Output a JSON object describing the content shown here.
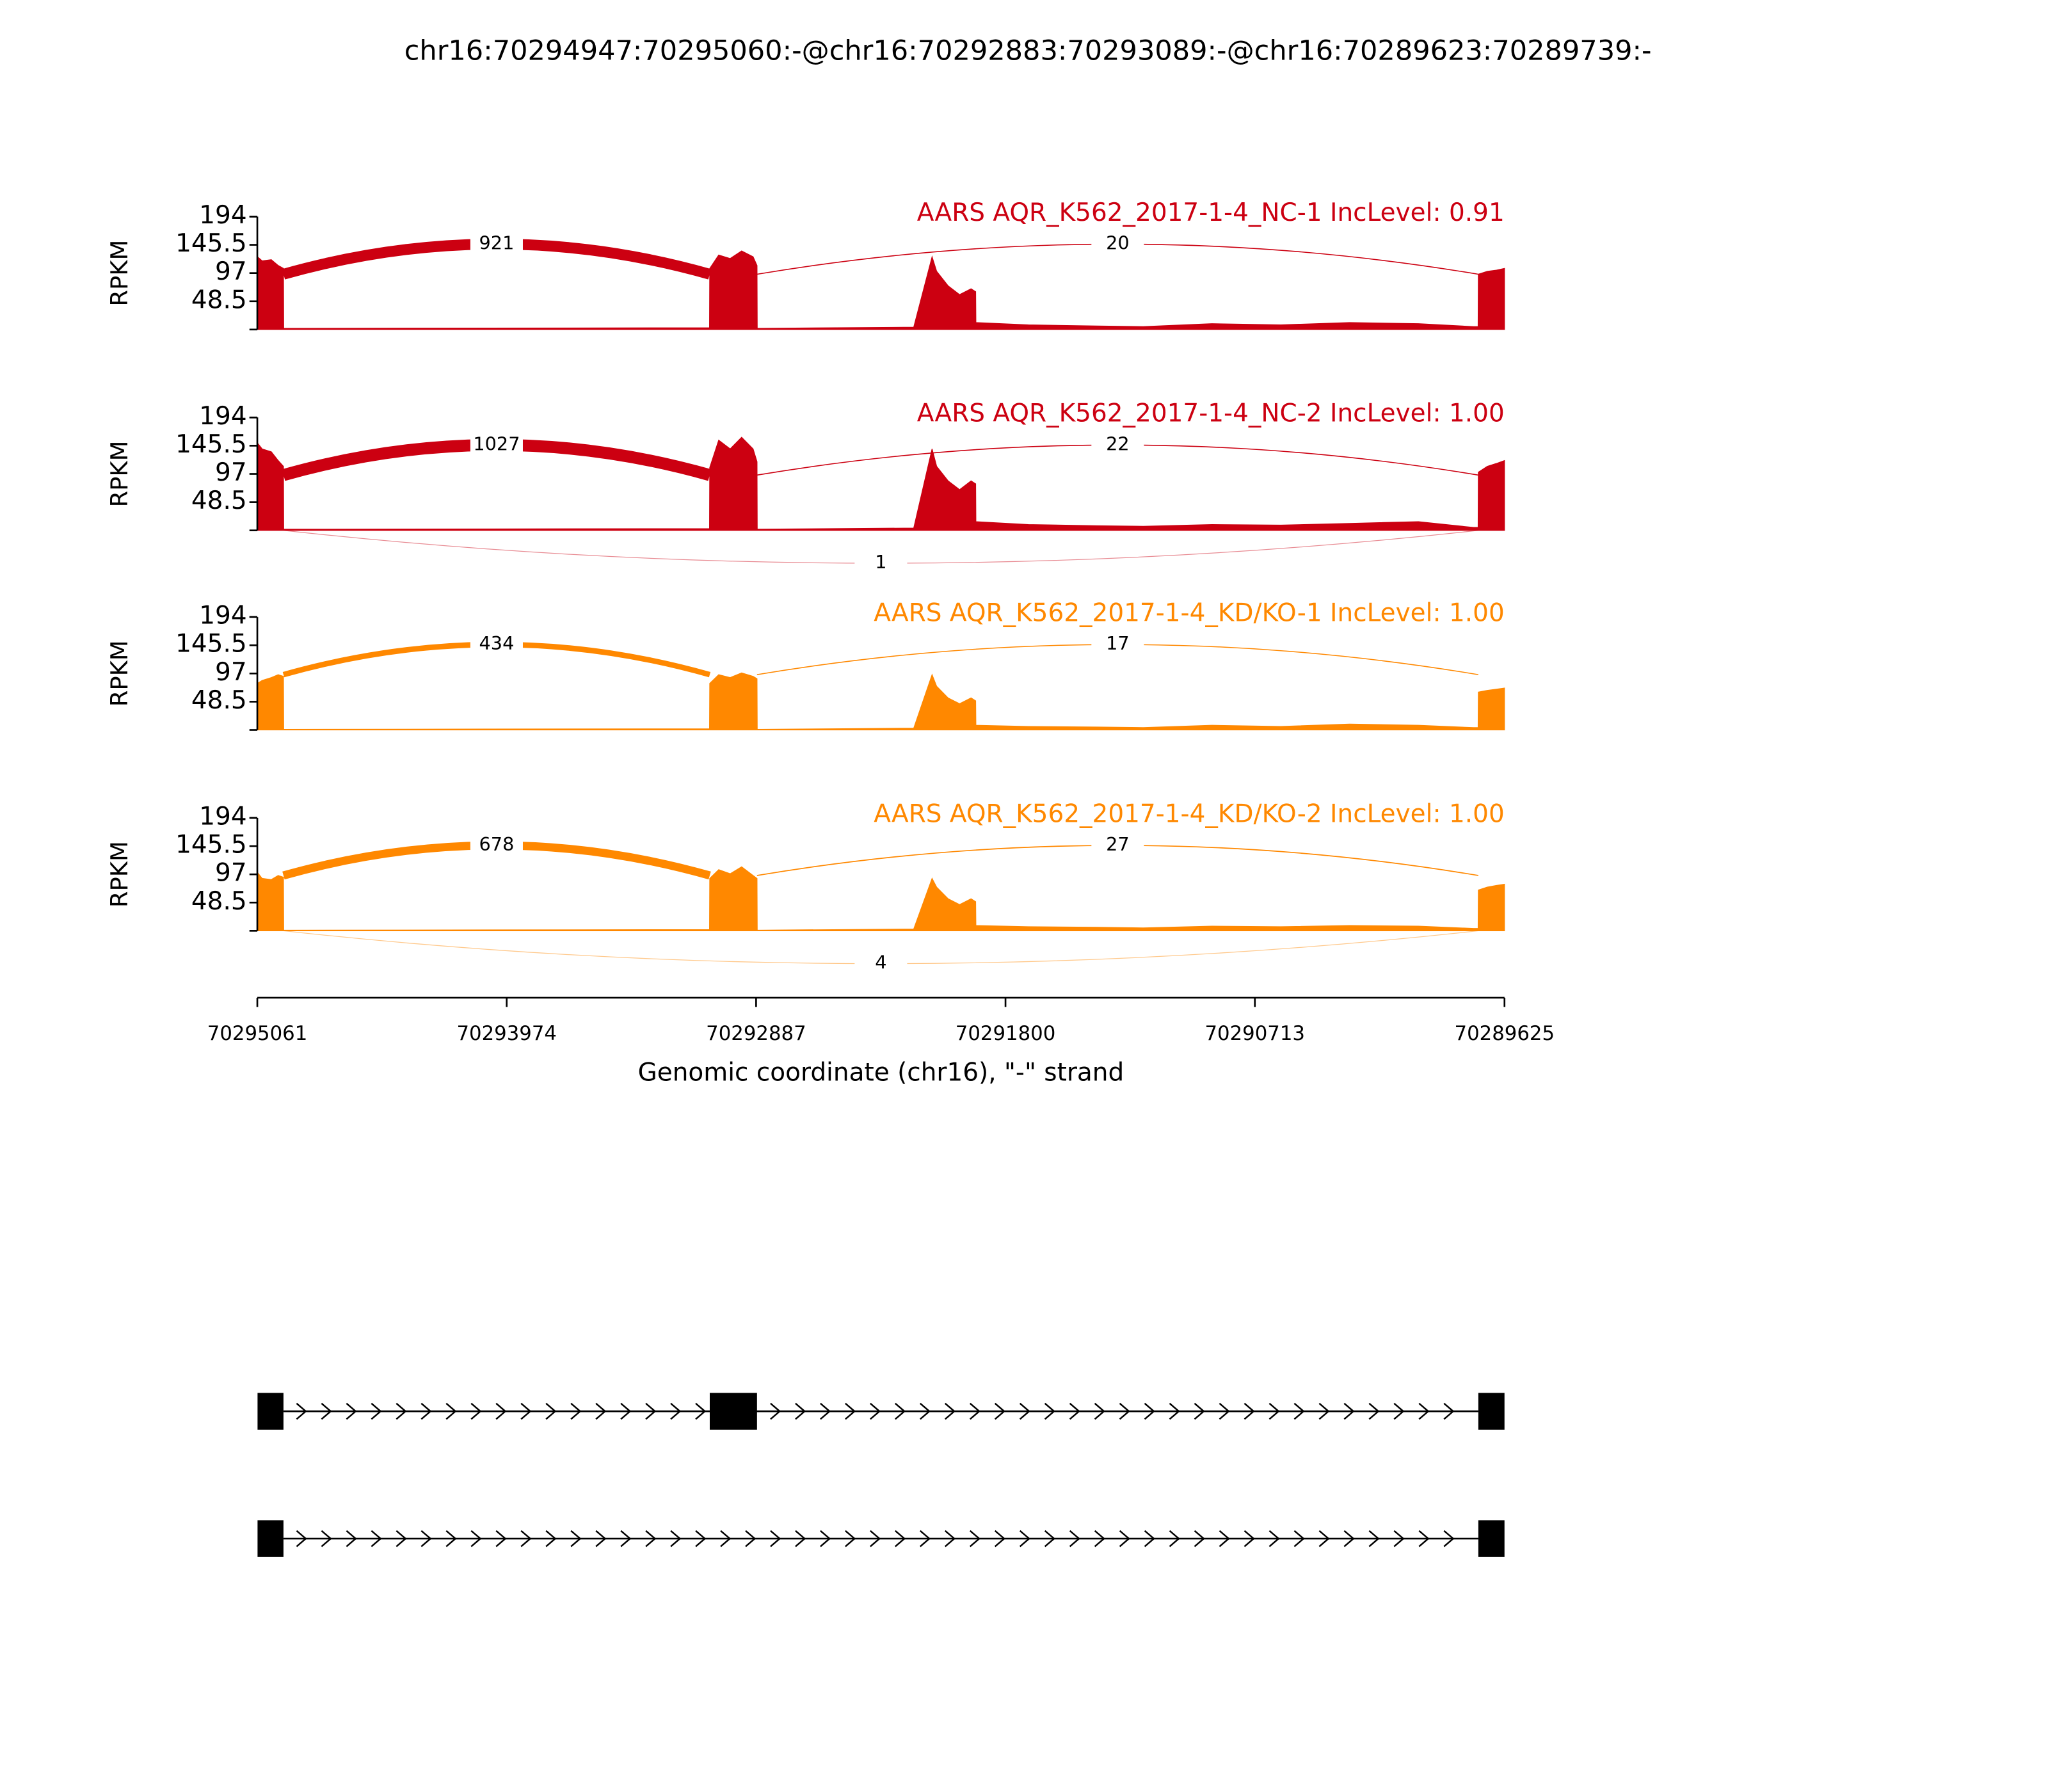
{
  "title": "chr16:70294947:70295060:-@chr16:70292883:70293089:-@chr16:70289623:70289739:-",
  "genome_axis": {
    "xlabel": "Genomic coordinate (chr16), \"-\" strand",
    "xlim": [
      70295061,
      70289625
    ],
    "xticks": [
      70295061,
      70293974,
      70292887,
      70291800,
      70290713,
      70289625
    ]
  },
  "chart_data": [
    {
      "type": "sashimi",
      "label": "AARS AQR_K562_2017-1-4_NC-1 IncLevel: 0.91",
      "color": "#cc0011",
      "ylabel": "RPKM",
      "ylim": [
        0,
        194
      ],
      "yticks": [
        48.5,
        97,
        145.5,
        194
      ],
      "coverage": {
        "x": [
          70295060,
          70295040,
          70295000,
          70294970,
          70294947,
          70294946,
          70293090,
          70293089,
          70293050,
          70293000,
          70292950,
          70292900,
          70292883,
          70292882,
          70292200,
          70292120,
          70292100,
          70292050,
          70292000,
          70291950,
          70291930,
          70291929,
          70291700,
          70291400,
          70291200,
          70290900,
          70290600,
          70290300,
          70290000,
          70289760,
          70289740,
          70289739,
          70289700,
          70289660,
          70289625
        ],
        "values": [
          125,
          118,
          120,
          110,
          105,
          2,
          3,
          105,
          128,
          122,
          135,
          125,
          110,
          2,
          4,
          125,
          100,
          75,
          60,
          70,
          65,
          12,
          8,
          6,
          5,
          10,
          8,
          12,
          10,
          5,
          5,
          95,
          100,
          102,
          105
        ]
      },
      "junctions": [
        {
          "start": 70294947,
          "end": 70293089,
          "count": 921
        },
        {
          "start": 70292883,
          "end": 70289739,
          "count": 20
        }
      ]
    },
    {
      "type": "sashimi",
      "label": "AARS AQR_K562_2017-1-4_NC-2 IncLevel: 1.00",
      "color": "#cc0011",
      "ylabel": "RPKM",
      "ylim": [
        0,
        194
      ],
      "yticks": [
        48.5,
        97,
        145.5,
        194
      ],
      "coverage": {
        "x": [
          70295060,
          70295040,
          70295000,
          70294970,
          70294947,
          70294946,
          70293090,
          70293089,
          70293050,
          70293000,
          70292950,
          70292900,
          70292883,
          70292882,
          70292200,
          70292120,
          70292100,
          70292050,
          70292000,
          70291950,
          70291930,
          70291929,
          70291700,
          70291400,
          70291200,
          70290900,
          70290600,
          70290300,
          70290000,
          70289760,
          70289740,
          70289739,
          70289700,
          70289660,
          70289625
        ],
        "values": [
          150,
          140,
          135,
          120,
          110,
          2,
          3,
          108,
          155,
          140,
          160,
          140,
          118,
          2,
          4,
          140,
          110,
          85,
          70,
          85,
          80,
          15,
          10,
          8,
          7,
          10,
          9,
          12,
          15,
          5,
          5,
          100,
          110,
          115,
          120
        ]
      },
      "junctions": [
        {
          "start": 70294947,
          "end": 70293089,
          "count": 1027
        },
        {
          "start": 70292883,
          "end": 70289739,
          "count": 22
        },
        {
          "start": 70294947,
          "end": 70289739,
          "count": 1
        }
      ]
    },
    {
      "type": "sashimi",
      "label": "AARS AQR_K562_2017-1-4_KD/KO-1 IncLevel: 1.00",
      "color": "#ff8800",
      "ylabel": "RPKM",
      "ylim": [
        0,
        194
      ],
      "yticks": [
        48.5,
        97,
        145.5,
        194
      ],
      "coverage": {
        "x": [
          70295060,
          70295040,
          70295000,
          70294970,
          70294947,
          70294946,
          70293090,
          70293089,
          70293050,
          70293000,
          70292950,
          70292900,
          70292883,
          70292882,
          70292200,
          70292120,
          70292100,
          70292050,
          70292000,
          70291950,
          70291930,
          70291929,
          70291700,
          70291400,
          70291200,
          70290900,
          70290600,
          70290300,
          70290000,
          70289760,
          70289740,
          70289739,
          70289700,
          70289660,
          70289625
        ],
        "values": [
          80,
          85,
          90,
          95,
          92,
          1,
          2,
          80,
          95,
          90,
          98,
          92,
          88,
          1,
          3,
          95,
          75,
          55,
          45,
          55,
          50,
          8,
          6,
          5,
          4,
          8,
          6,
          10,
          8,
          4,
          4,
          65,
          68,
          70,
          72
        ]
      },
      "junctions": [
        {
          "start": 70294947,
          "end": 70293089,
          "count": 434
        },
        {
          "start": 70292883,
          "end": 70289739,
          "count": 17
        }
      ]
    },
    {
      "type": "sashimi",
      "label": "AARS AQR_K562_2017-1-4_KD/KO-2 IncLevel: 1.00",
      "color": "#ff8800",
      "ylabel": "RPKM",
      "ylim": [
        0,
        194
      ],
      "yticks": [
        48.5,
        97,
        145.5,
        194
      ],
      "coverage": {
        "x": [
          70295060,
          70295040,
          70295000,
          70294970,
          70294947,
          70294946,
          70293090,
          70293089,
          70293050,
          70293000,
          70292950,
          70292900,
          70292883,
          70292882,
          70292200,
          70292120,
          70292100,
          70292050,
          70292000,
          70291950,
          70291930,
          70291929,
          70291700,
          70291400,
          70291200,
          70290900,
          70290600,
          70290300,
          70290000,
          70289760,
          70289740,
          70289739,
          70289700,
          70289660,
          70289625
        ],
        "values": [
          100,
          90,
          88,
          95,
          92,
          1,
          2,
          90,
          105,
          98,
          110,
          95,
          90,
          1,
          3,
          90,
          75,
          55,
          45,
          55,
          50,
          9,
          7,
          6,
          5,
          8,
          7,
          9,
          8,
          4,
          4,
          70,
          75,
          78,
          80
        ]
      },
      "junctions": [
        {
          "start": 70294947,
          "end": 70293089,
          "count": 678
        },
        {
          "start": 70292883,
          "end": 70289739,
          "count": 27
        },
        {
          "start": 70294947,
          "end": 70289739,
          "count": 4
        }
      ]
    }
  ],
  "transcripts": [
    {
      "exons": [
        [
          70295060,
          70294947
        ],
        [
          70293089,
          70292883
        ],
        [
          70289739,
          70289625
        ]
      ]
    },
    {
      "exons": [
        [
          70295060,
          70294947
        ],
        [
          70289739,
          70289625
        ]
      ]
    }
  ]
}
